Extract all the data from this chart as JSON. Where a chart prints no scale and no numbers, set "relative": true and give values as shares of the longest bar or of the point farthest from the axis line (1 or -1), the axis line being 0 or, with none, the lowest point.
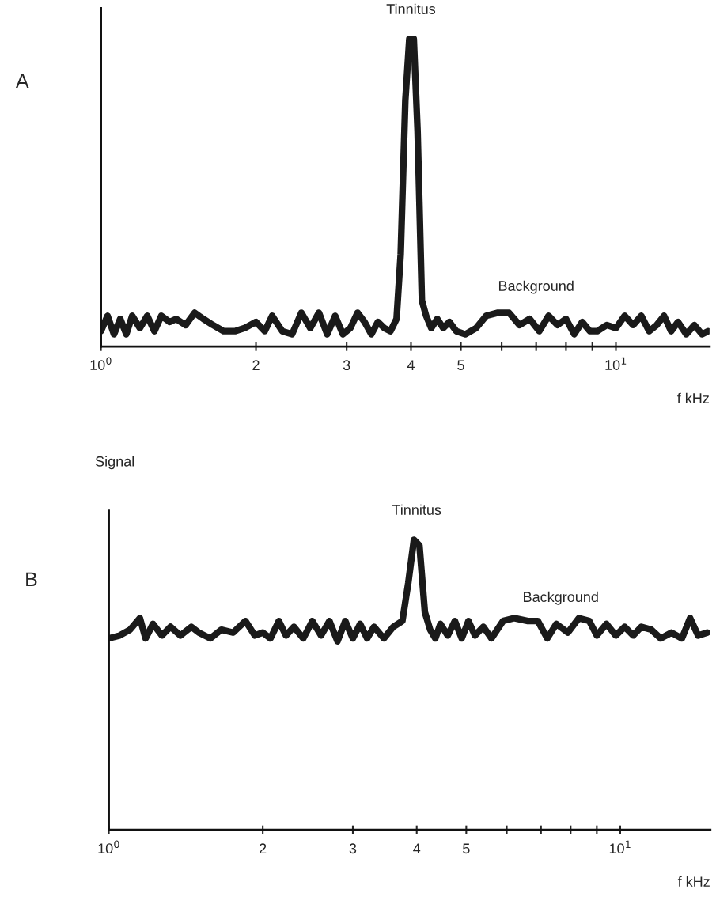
{
  "chart_data": [
    {
      "type": "line",
      "title": "A",
      "xlabel": "f kHz",
      "log": "x",
      "relative": true,
      "grid": false,
      "legend": false,
      "tick_labels": "x",
      "marker": "none",
      "line_style": "solid",
      "xlim": [
        1,
        15.2
      ],
      "xticks": [
        {
          "value": 1,
          "label": "10$^{0}$"
        },
        2,
        3,
        4,
        5,
        {
          "value": 6,
          "label": null
        },
        {
          "value": 7,
          "label": null
        },
        {
          "value": 8,
          "label": null
        },
        {
          "value": 9,
          "label": null
        },
        {
          "value": 10,
          "label": "10$^{1}$"
        }
      ],
      "annotations": [
        {
          "text": "Tinnitus",
          "x": 4,
          "y": 1
        },
        {
          "text": "Background",
          "x": 7,
          "y": 0.1
        }
      ],
      "series": [
        {
          "color": "#1a1a1a",
          "x": [
            1.0,
            1.03,
            1.06,
            1.09,
            1.12,
            1.15,
            1.19,
            1.23,
            1.27,
            1.31,
            1.36,
            1.4,
            1.46,
            1.52,
            1.58,
            1.65,
            1.73,
            1.82,
            1.9,
            2.0,
            2.08,
            2.15,
            2.25,
            2.35,
            2.45,
            2.55,
            2.65,
            2.75,
            2.85,
            2.95,
            3.05,
            3.15,
            3.25,
            3.35,
            3.45,
            3.55,
            3.65,
            3.75,
            3.82,
            3.9,
            3.97,
            4.05,
            4.12,
            4.2,
            4.28,
            4.38,
            4.5,
            4.62,
            4.75,
            4.9,
            5.1,
            5.35,
            5.6,
            5.9,
            6.2,
            6.5,
            6.8,
            7.1,
            7.4,
            7.7,
            8.0,
            8.3,
            8.6,
            8.9,
            9.2,
            9.6,
            10.0,
            10.4,
            10.8,
            11.2,
            11.6,
            12.0,
            12.4,
            12.8,
            13.2,
            13.7,
            14.2,
            14.7,
            15.1
          ],
          "values": [
            0.05,
            0.1,
            0.04,
            0.09,
            0.04,
            0.1,
            0.06,
            0.1,
            0.05,
            0.1,
            0.08,
            0.09,
            0.07,
            0.11,
            0.09,
            0.07,
            0.05,
            0.05,
            0.06,
            0.08,
            0.05,
            0.1,
            0.05,
            0.04,
            0.11,
            0.06,
            0.11,
            0.04,
            0.1,
            0.04,
            0.06,
            0.11,
            0.08,
            0.04,
            0.08,
            0.06,
            0.05,
            0.09,
            0.3,
            0.8,
            1.0,
            1.0,
            0.7,
            0.15,
            0.1,
            0.06,
            0.09,
            0.06,
            0.08,
            0.05,
            0.04,
            0.06,
            0.1,
            0.11,
            0.11,
            0.07,
            0.09,
            0.05,
            0.1,
            0.07,
            0.09,
            0.04,
            0.08,
            0.05,
            0.05,
            0.07,
            0.06,
            0.1,
            0.07,
            0.1,
            0.05,
            0.07,
            0.1,
            0.05,
            0.08,
            0.04,
            0.07,
            0.04,
            0.05
          ]
        }
      ]
    },
    {
      "type": "line",
      "title": "B",
      "xlabel": "f kHz",
      "ylabel": "Signal",
      "log": "x",
      "relative": true,
      "grid": false,
      "legend": false,
      "tick_labels": "x",
      "marker": "none",
      "line_style": "solid",
      "xlim": [
        1,
        15
      ],
      "xticks": [
        {
          "value": 1,
          "label": "10$^{0}$"
        },
        2,
        3,
        4,
        5,
        {
          "value": 6,
          "label": null
        },
        {
          "value": 7,
          "label": null
        },
        {
          "value": 8,
          "label": null
        },
        {
          "value": 9,
          "label": null
        },
        {
          "value": 10,
          "label": "10$^{1}$"
        }
      ],
      "annotations": [
        {
          "text": "Tinnitus",
          "x": 4,
          "y": 1
        },
        {
          "text": "Background",
          "x": 7.65,
          "y": 0.7
        }
      ],
      "series": [
        {
          "color": "#1a1a1a",
          "x": [
            1.0,
            1.05,
            1.1,
            1.15,
            1.18,
            1.22,
            1.27,
            1.32,
            1.38,
            1.45,
            1.5,
            1.58,
            1.66,
            1.75,
            1.85,
            1.93,
            2.0,
            2.07,
            2.15,
            2.22,
            2.3,
            2.4,
            2.5,
            2.6,
            2.7,
            2.8,
            2.9,
            3.0,
            3.1,
            3.2,
            3.3,
            3.45,
            3.6,
            3.75,
            3.85,
            3.95,
            4.05,
            4.15,
            4.25,
            4.35,
            4.45,
            4.6,
            4.75,
            4.9,
            5.05,
            5.2,
            5.4,
            5.6,
            5.9,
            6.2,
            6.6,
            6.9,
            7.2,
            7.5,
            7.9,
            8.3,
            8.7,
            9.0,
            9.4,
            9.8,
            10.2,
            10.6,
            11.0,
            11.5,
            12.0,
            12.6,
            13.2,
            13.7,
            14.2,
            14.8
          ],
          "values": [
            0.66,
            0.67,
            0.69,
            0.73,
            0.66,
            0.71,
            0.67,
            0.7,
            0.67,
            0.7,
            0.68,
            0.66,
            0.69,
            0.68,
            0.72,
            0.67,
            0.68,
            0.66,
            0.72,
            0.67,
            0.7,
            0.66,
            0.72,
            0.67,
            0.72,
            0.65,
            0.72,
            0.66,
            0.71,
            0.66,
            0.7,
            0.66,
            0.7,
            0.72,
            0.85,
            1.0,
            0.98,
            0.75,
            0.69,
            0.66,
            0.71,
            0.67,
            0.72,
            0.66,
            0.72,
            0.67,
            0.7,
            0.66,
            0.72,
            0.73,
            0.72,
            0.72,
            0.66,
            0.71,
            0.68,
            0.73,
            0.72,
            0.67,
            0.71,
            0.67,
            0.7,
            0.67,
            0.7,
            0.69,
            0.66,
            0.68,
            0.66,
            0.73,
            0.67,
            0.68
          ]
        }
      ]
    }
  ]
}
